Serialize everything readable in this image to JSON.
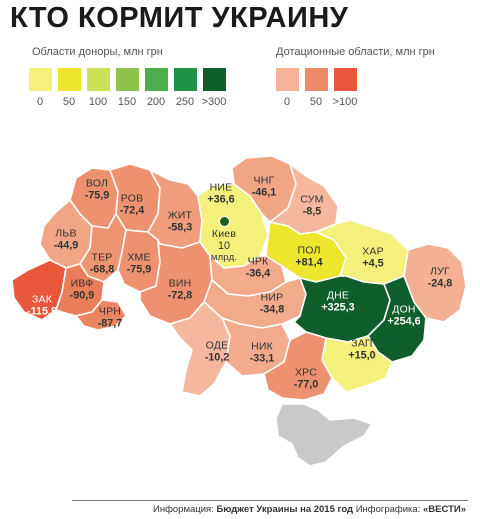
{
  "title": "КТО КОРМИТ УКРАИНУ",
  "legend": {
    "donors_title": "Области доноры, млн грн",
    "donor_scale": [
      {
        "label": "0",
        "color": "#f4f07c"
      },
      {
        "label": "50",
        "color": "#ede62c"
      },
      {
        "label": "100",
        "color": "#cde05a"
      },
      {
        "label": "150",
        "color": "#8fc24a"
      },
      {
        "label": "200",
        "color": "#4fad4b"
      },
      {
        "label": "250",
        "color": "#1e9142"
      },
      {
        "label": ">300",
        "color": "#0f5e2c"
      }
    ],
    "subsidized_title": "Дотационные области, млн грн",
    "subsidized_scale": [
      {
        "label": "0",
        "color": "#f6b296"
      },
      {
        "label": "50",
        "color": "#ed8a66"
      },
      {
        "label": ">100",
        "color": "#e8573a"
      }
    ]
  },
  "regions": [
    {
      "id": "vol",
      "name": "ВОЛ",
      "value": "-75,9",
      "color": "#ed9170"
    },
    {
      "id": "rov",
      "name": "РОВ",
      "value": "-72,4",
      "color": "#ed9170"
    },
    {
      "id": "lvv",
      "name": "ЛЬВ",
      "value": "-44,9",
      "color": "#f1a584"
    },
    {
      "id": "ter",
      "name": "ТЕР",
      "value": "-68,8",
      "color": "#ee9473"
    },
    {
      "id": "khm",
      "name": "ХМЕ",
      "value": "-75,9",
      "color": "#ed9170"
    },
    {
      "id": "ivf",
      "name": "ИВФ",
      "value": "-90,9",
      "color": "#ea7e5b"
    },
    {
      "id": "zak",
      "name": "ЗАК",
      "value": "-115,8",
      "color": "#e8573a"
    },
    {
      "id": "chr",
      "name": "ЧРН",
      "value": "-87,7",
      "color": "#eb8462"
    },
    {
      "id": "zhyt",
      "name": "ЖИТ",
      "value": "-58,3",
      "color": "#ef9d7c"
    },
    {
      "id": "vin",
      "name": "ВИН",
      "value": "-72,8",
      "color": "#ed9170"
    },
    {
      "id": "kie",
      "name": "НИЕ",
      "value": "+36,6",
      "color": "#f4f07c"
    },
    {
      "id": "kiev",
      "name": "Киев",
      "value": "10",
      "extra": "млрд.",
      "color": "#f4f07c"
    },
    {
      "id": "chk",
      "name": "ЧРК",
      "value": "-36,4",
      "color": "#f2aa8b"
    },
    {
      "id": "chg",
      "name": "ЧНГ",
      "value": "-46,1",
      "color": "#f1a584"
    },
    {
      "id": "sum",
      "name": "СУМ",
      "value": "-8,5",
      "color": "#f5b89e"
    },
    {
      "id": "pol",
      "name": "ПОЛ",
      "value": "+81,4",
      "color": "#ede62c"
    },
    {
      "id": "khr",
      "name": "ХАР",
      "value": "+4,5",
      "color": "#f4f07c"
    },
    {
      "id": "lug",
      "name": "ЛУГ",
      "value": "-24,8",
      "color": "#f3b093"
    },
    {
      "id": "kir",
      "name": "НИР",
      "value": "-34,8",
      "color": "#f2aa8b"
    },
    {
      "id": "dne",
      "name": "ДНЕ",
      "value": "+325,3",
      "color": "#0f5e2c"
    },
    {
      "id": "don",
      "name": "ДОН",
      "value": "+254,6",
      "color": "#0f5e2c"
    },
    {
      "id": "ode",
      "name": "ОДЕ",
      "value": "-10,2",
      "color": "#f5b89e"
    },
    {
      "id": "nik",
      "name": "НИК",
      "value": "-33,1",
      "color": "#f2ac8d"
    },
    {
      "id": "zap",
      "name": "ЗАП",
      "value": "+15,0",
      "color": "#f4f07c"
    },
    {
      "id": "khs",
      "name": "ХРС",
      "value": "-77,0",
      "color": "#ed9170"
    },
    {
      "id": "crimea",
      "name": "",
      "value": "",
      "color": "#c9c9c9"
    }
  ],
  "footer": {
    "prefix": "Информация:",
    "source": "Бюджет Украины на 2015 год",
    "mid": "Инфографика:",
    "brand": "«ВЕСТИ»"
  }
}
